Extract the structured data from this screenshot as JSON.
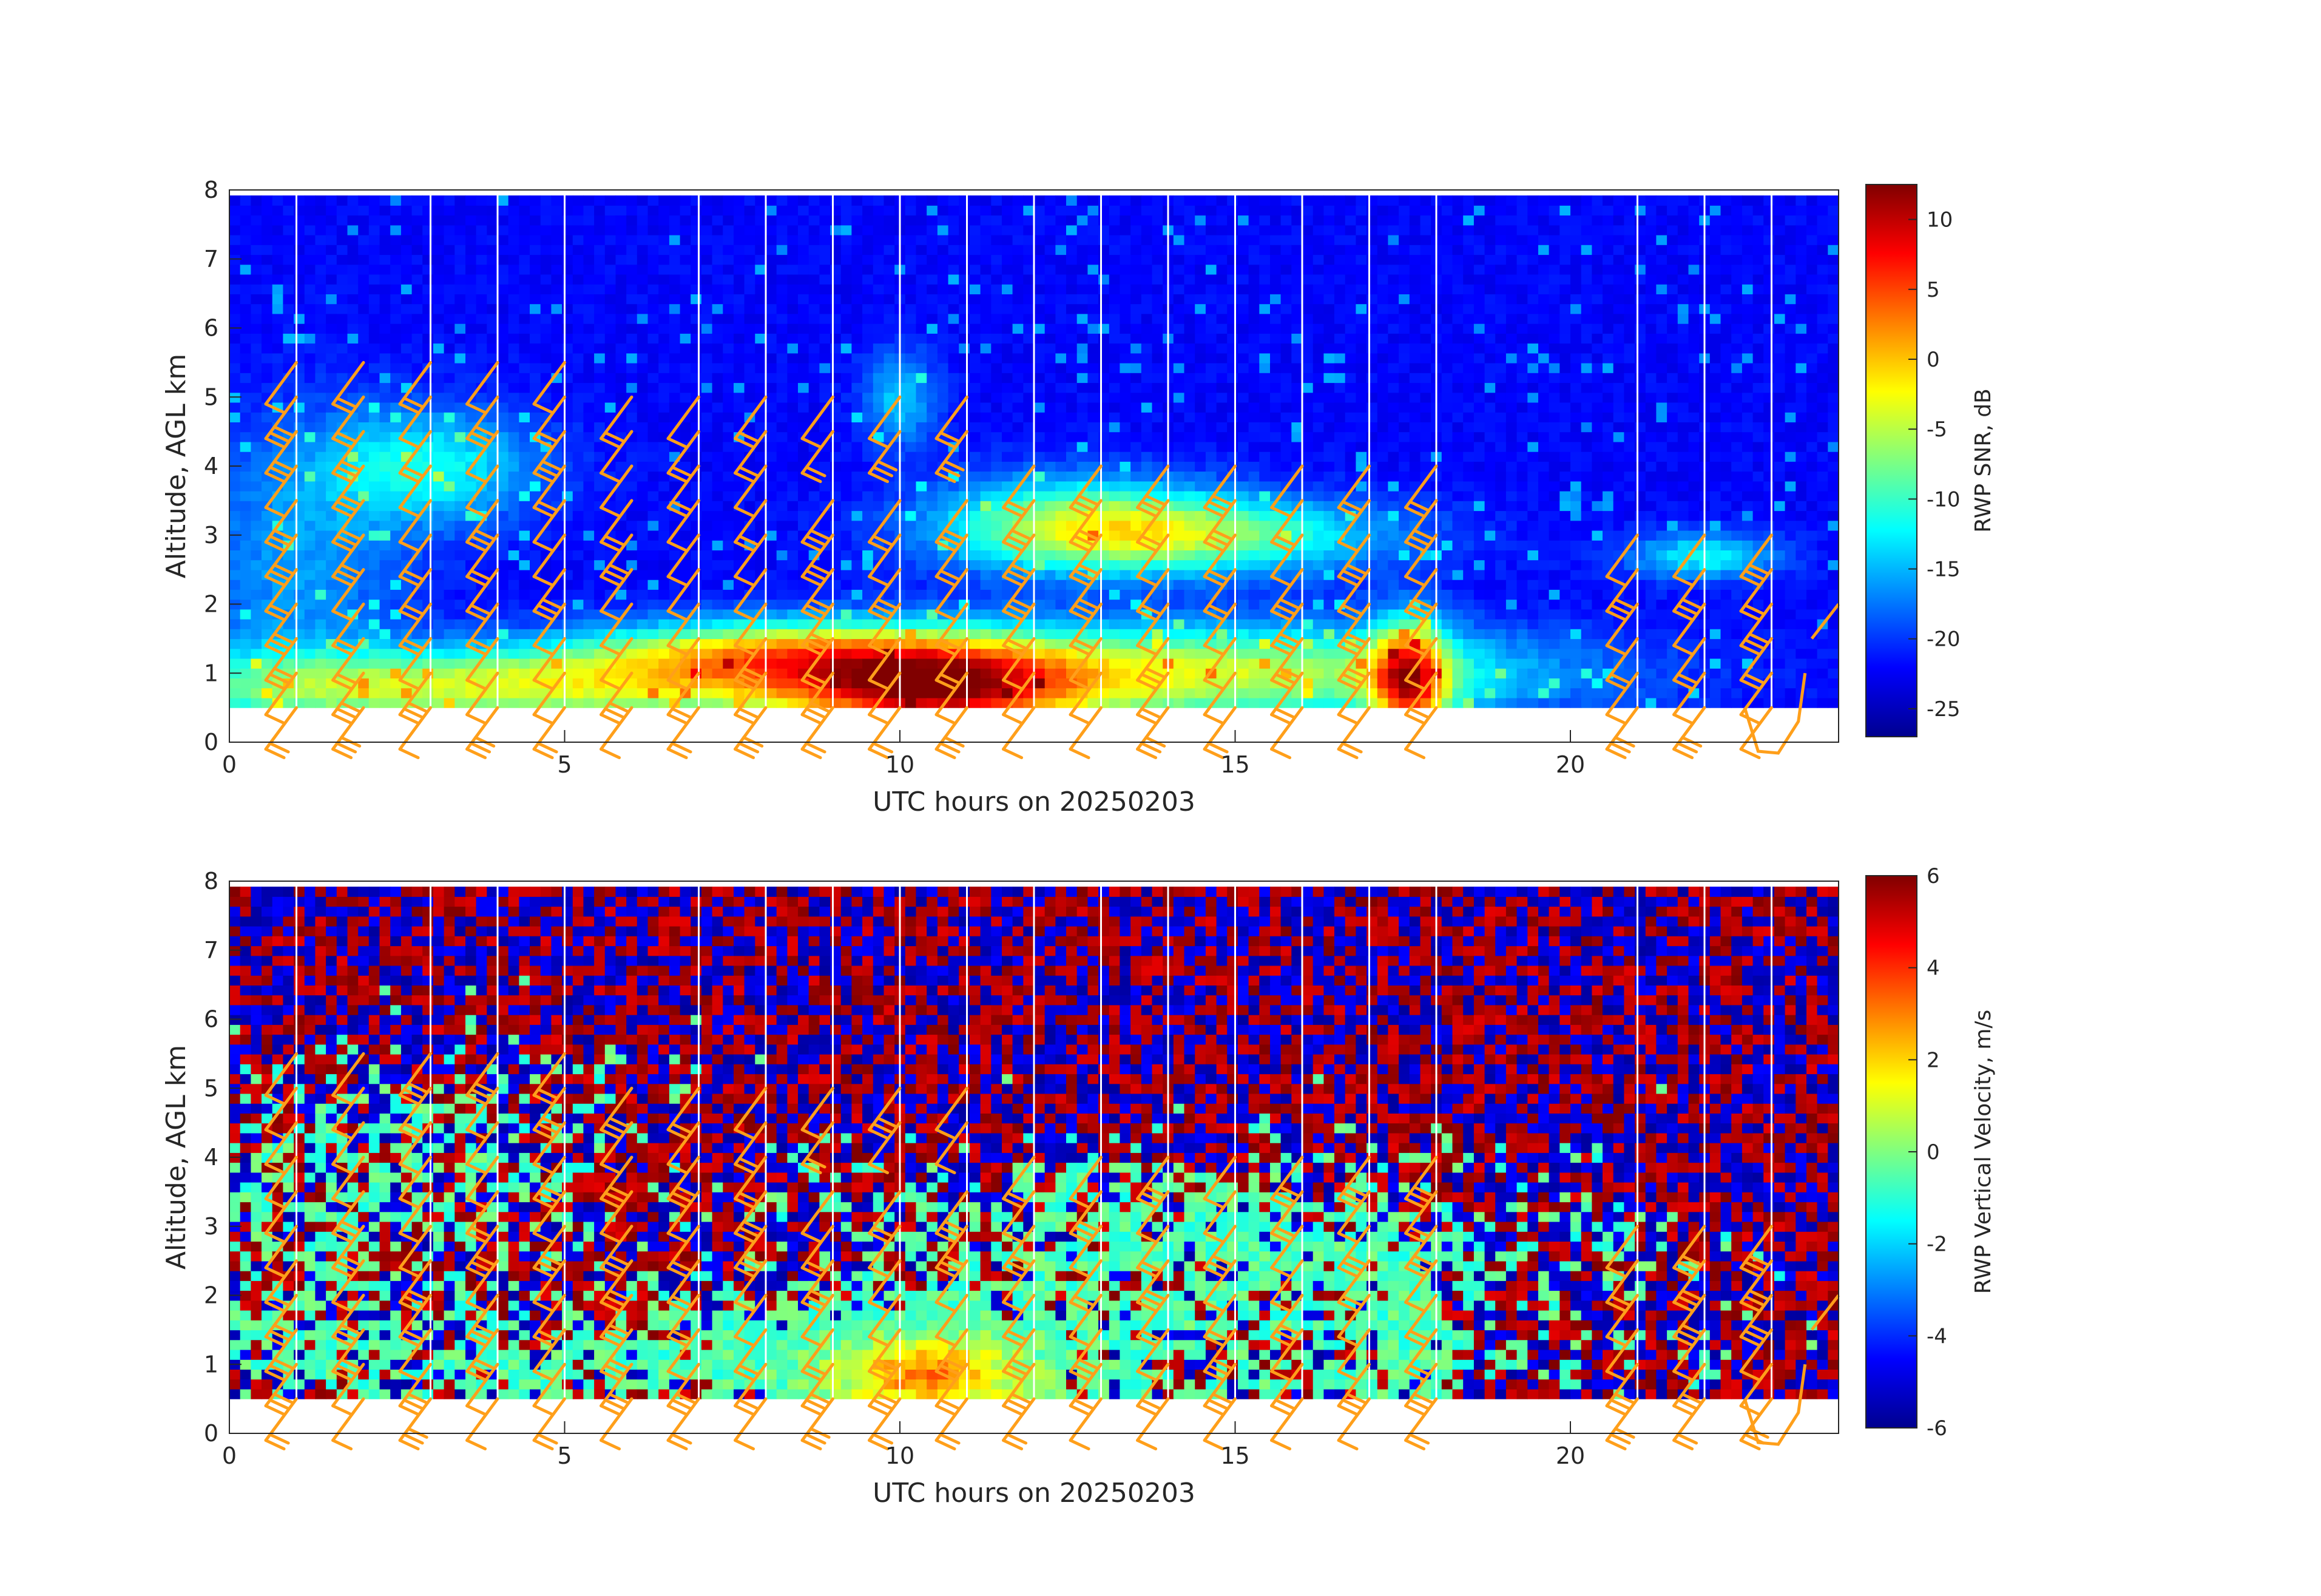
{
  "chart_data": [
    {
      "type": "heatmap",
      "xlabel": "UTC hours on 20250203",
      "ylabel": "Altitude, AGL km",
      "xlim": [
        0,
        24
      ],
      "ylim": [
        0,
        8
      ],
      "xticks": [
        "0",
        "5",
        "10",
        "15",
        "20"
      ],
      "yticks": [
        "0",
        "1",
        "2",
        "3",
        "4",
        "5",
        "6",
        "7",
        "8"
      ],
      "colorbar": {
        "label": "RWP SNR, dB",
        "range": [
          -27,
          12.5
        ],
        "ticks": [
          "10",
          "5",
          "0",
          "-5",
          "-10",
          "-15",
          "-20",
          "-25"
        ],
        "colormap": "jet"
      },
      "data_floor_km": 0.5,
      "overlay": "wind barbs (orange)",
      "overlay_color": "#ff9f1a"
    },
    {
      "type": "heatmap",
      "xlabel": "UTC hours on 20250203",
      "ylabel": "Altitude, AGL km",
      "xlim": [
        0,
        24
      ],
      "ylim": [
        0,
        8
      ],
      "xticks": [
        "0",
        "5",
        "10",
        "15",
        "20"
      ],
      "yticks": [
        "0",
        "1",
        "2",
        "3",
        "4",
        "5",
        "6",
        "7",
        "8"
      ],
      "colorbar": {
        "label": "RWP Vertical Velocity, m/s",
        "range": [
          -6,
          6
        ],
        "ticks": [
          "6",
          "4",
          "2",
          "0",
          "-2",
          "-4",
          "-6"
        ],
        "colormap": "jet"
      },
      "data_floor_km": 0.5,
      "overlay": "wind barbs (orange)",
      "overlay_color": "#ff9f1a"
    }
  ]
}
